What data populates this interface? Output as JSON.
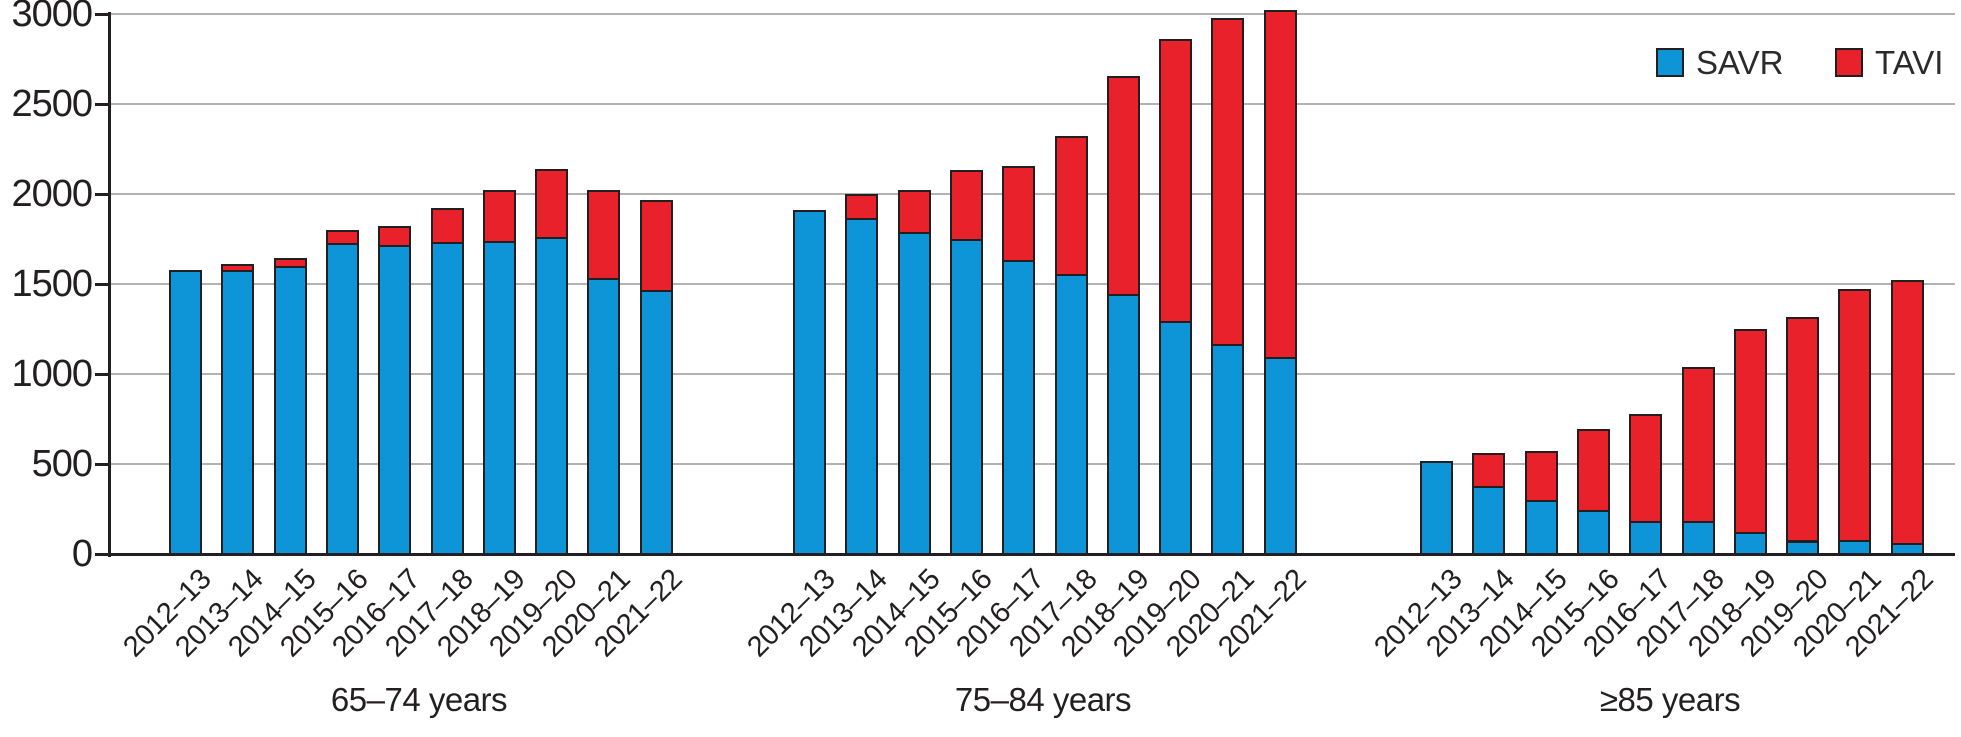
{
  "chart_data": {
    "type": "bar",
    "stacked": true,
    "title": "",
    "xlabel": "",
    "ylabel": "",
    "ylim": [
      0,
      3000
    ],
    "yticks": [
      0,
      500,
      1000,
      1500,
      2000,
      2500,
      3000
    ],
    "grid": "horizontal",
    "legend_position": "top-right",
    "categories": [
      "2012–13",
      "2013–14",
      "2014–15",
      "2015–16",
      "2016–17",
      "2017–18",
      "2018–19",
      "2019–20",
      "2020–21",
      "2021–22"
    ],
    "series_names": [
      "SAVR",
      "TAVI"
    ],
    "series_colors": {
      "SAVR": "#0e95d8",
      "TAVI": "#e8212a"
    },
    "groups": [
      {
        "label": "65–74 years",
        "SAVR": [
          1580,
          1580,
          1600,
          1730,
          1715,
          1735,
          1740,
          1760,
          1535,
          1465
        ],
        "TAVI": [
          0,
          30,
          45,
          70,
          105,
          185,
          285,
          380,
          490,
          500
        ]
      },
      {
        "label": "75–84 years",
        "SAVR": [
          1910,
          1865,
          1790,
          1750,
          1635,
          1555,
          1445,
          1295,
          1165,
          1095
        ],
        "TAVI": [
          0,
          135,
          235,
          385,
          520,
          765,
          1210,
          1565,
          1815,
          1925
        ]
      },
      {
        "label": "≥85 years",
        "SAVR": [
          515,
          380,
          300,
          245,
          185,
          185,
          120,
          75,
          80,
          60
        ],
        "TAVI": [
          0,
          180,
          275,
          450,
          595,
          855,
          1130,
          1240,
          1390,
          1465
        ]
      }
    ]
  },
  "legend": {
    "items": [
      {
        "label": "SAVR",
        "color": "#0e95d8"
      },
      {
        "label": "TAVI",
        "color": "#e8212a"
      }
    ]
  }
}
